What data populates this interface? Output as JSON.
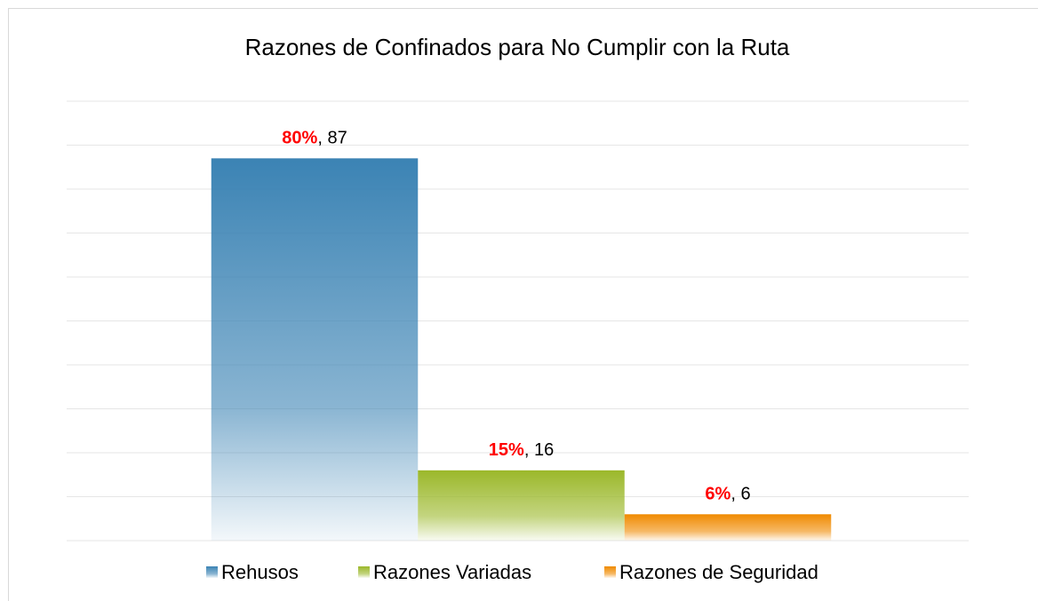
{
  "chart_data": {
    "type": "bar",
    "title": "Razones de Confinados para No Cumplir con la Ruta",
    "series": [
      {
        "name": "Rehusos",
        "color": "#3b83b4",
        "values": [
          87
        ],
        "value_labels": [
          "80%, 87"
        ]
      },
      {
        "name": "Razones Variadas",
        "color": "#9bb82a",
        "values": [
          16
        ],
        "value_labels": [
          "15%, 16"
        ]
      },
      {
        "name": "Razones de Seguridad",
        "color": "#f08a00",
        "values": [
          6
        ],
        "value_labels": [
          "6%, 6"
        ]
      }
    ],
    "ylim": [
      0,
      100
    ],
    "yticks": [
      0,
      10,
      20,
      30,
      40,
      50,
      60,
      70,
      80,
      90,
      100
    ],
    "grid": true,
    "legend": "bottom"
  }
}
